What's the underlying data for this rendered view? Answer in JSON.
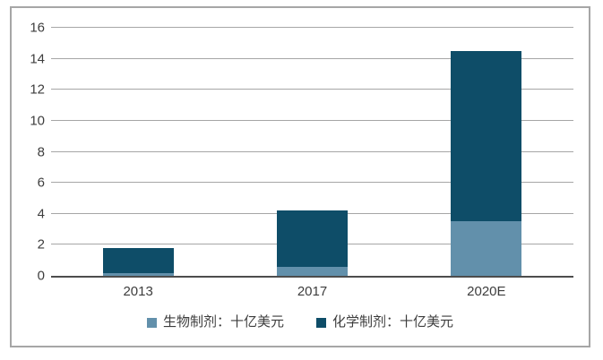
{
  "chart_data": {
    "type": "bar",
    "stacked": true,
    "title": "",
    "xlabel": "",
    "ylabel": "",
    "categories": [
      "2013",
      "2017",
      "2020E"
    ],
    "series": [
      {
        "name": "生物制剂：十亿美元",
        "color": "#6290ab",
        "values": [
          0.2,
          0.6,
          3.5
        ]
      },
      {
        "name": "化学制剂：十亿美元",
        "color": "#0e4d68",
        "values": [
          1.6,
          3.6,
          11.0
        ]
      }
    ],
    "totals": [
      1.8,
      4.2,
      14.5
    ],
    "ylim": [
      0,
      16
    ],
    "ytick_step": 2,
    "grid": true,
    "legend_position": "bottom"
  },
  "colors": {
    "gridline": "#a6a6a6",
    "axis_line": "#4d4d4d",
    "frame_border": "#a6a6a6",
    "text": "#3d3d3d",
    "background": "#ffffff"
  }
}
